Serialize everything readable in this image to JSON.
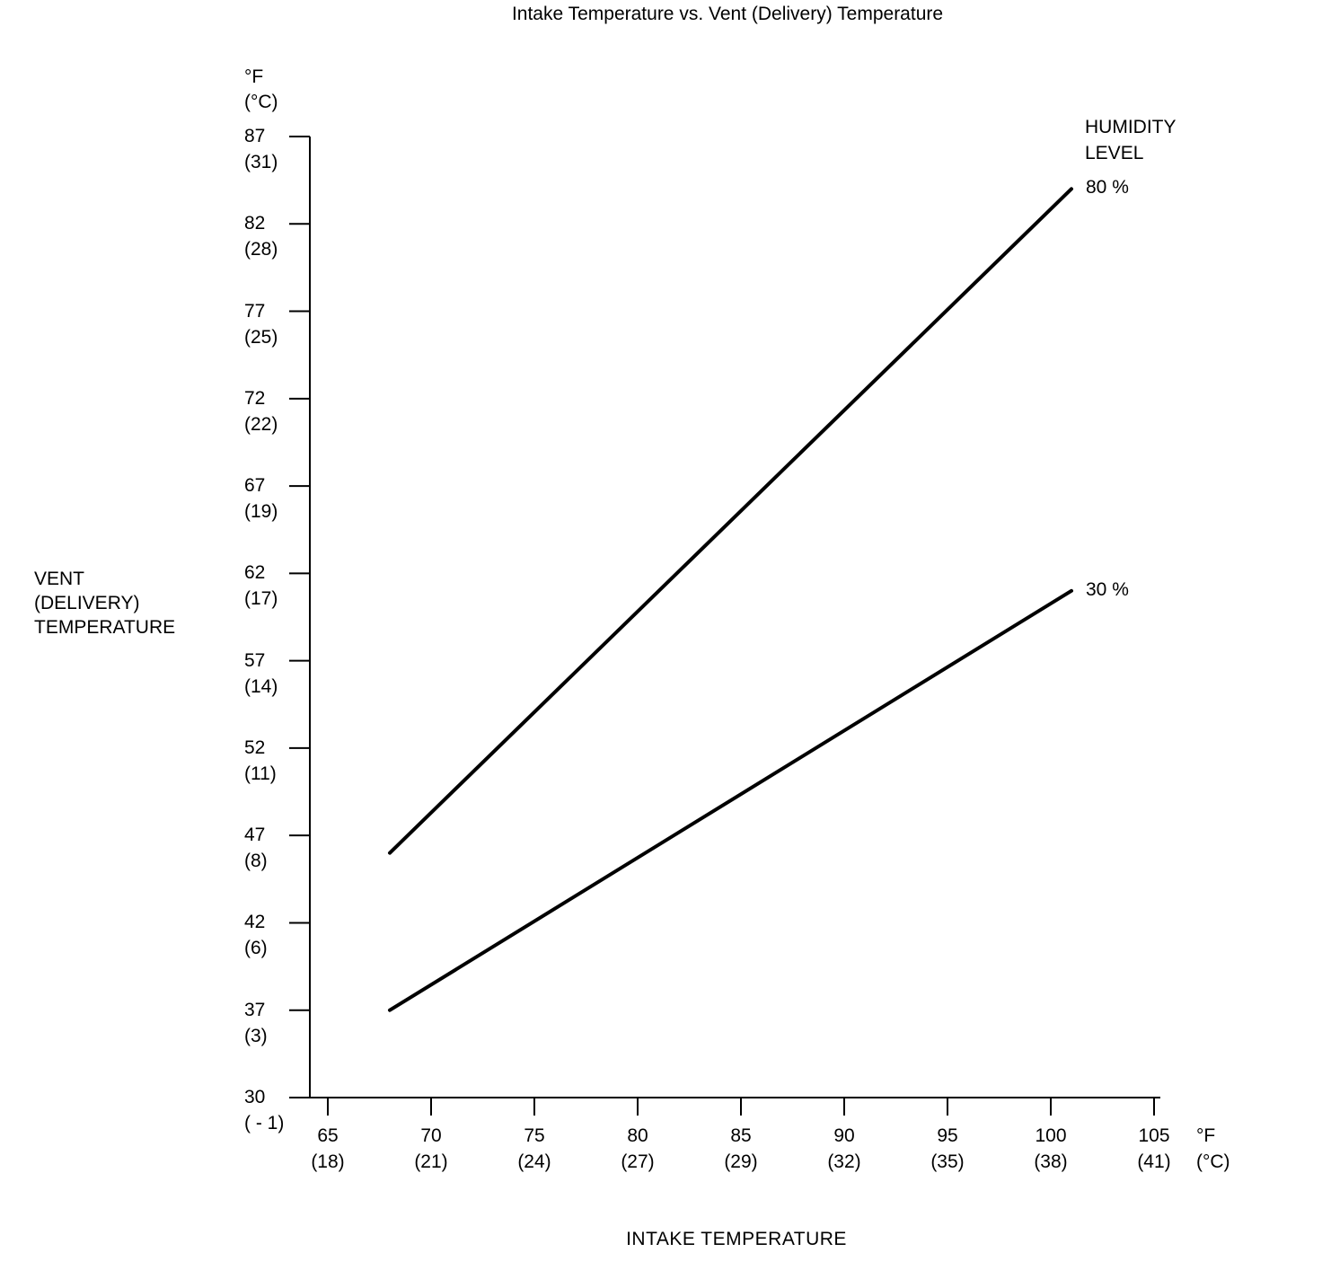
{
  "title": "Intake Temperature vs. Vent (Delivery) Temperature",
  "chart_data": {
    "type": "line",
    "title": "Intake Temperature vs. Vent (Delivery) Temperature",
    "xlabel": "INTAKE TEMPERATURE",
    "ylabel": "VENT (DELIVERY) TEMPERATURE",
    "ylabel_lines": [
      "VENT",
      "(DELIVERY)",
      "TEMPERATURE"
    ],
    "legend_title": "HUMIDITY LEVEL",
    "legend_lines": [
      "HUMIDITY",
      "LEVEL"
    ],
    "x_unit_f": "°F",
    "x_unit_c": "(°C)",
    "y_unit_f": "°F",
    "y_unit_c": "(°C)",
    "xlim": [
      65,
      105
    ],
    "ylim": [
      30,
      87
    ],
    "grid": false,
    "legend_position": "top-right",
    "x_ticks": [
      {
        "value": 65,
        "label_f": "65",
        "label_c": "(18)"
      },
      {
        "value": 70,
        "label_f": "70",
        "label_c": "(21)"
      },
      {
        "value": 75,
        "label_f": "75",
        "label_c": "(24)"
      },
      {
        "value": 80,
        "label_f": "80",
        "label_c": "(27)"
      },
      {
        "value": 85,
        "label_f": "85",
        "label_c": "(29)"
      },
      {
        "value": 90,
        "label_f": "90",
        "label_c": "(32)"
      },
      {
        "value": 95,
        "label_f": "95",
        "label_c": "(35)"
      },
      {
        "value": 100,
        "label_f": "100",
        "label_c": "(38)"
      },
      {
        "value": 105,
        "label_f": "105",
        "label_c": "(41)"
      }
    ],
    "y_ticks": [
      {
        "value": 87,
        "label_f": "87",
        "label_c": "(31)"
      },
      {
        "value": 82,
        "label_f": "82",
        "label_c": "(28)"
      },
      {
        "value": 77,
        "label_f": "77",
        "label_c": "(25)"
      },
      {
        "value": 72,
        "label_f": "72",
        "label_c": "(22)"
      },
      {
        "value": 67,
        "label_f": "67",
        "label_c": "(19)"
      },
      {
        "value": 62,
        "label_f": "62",
        "label_c": "(17)"
      },
      {
        "value": 57,
        "label_f": "57",
        "label_c": "(14)"
      },
      {
        "value": 52,
        "label_f": "52",
        "label_c": "(11)"
      },
      {
        "value": 47,
        "label_f": "47",
        "label_c": "(8)"
      },
      {
        "value": 42,
        "label_f": "42",
        "label_c": "(6)"
      },
      {
        "value": 37,
        "label_f": "37",
        "label_c": "(3)"
      },
      {
        "value": 30,
        "label_f": "30",
        "label_c": "( - 1)"
      }
    ],
    "series": [
      {
        "name": "80 %",
        "points": [
          [
            68,
            46
          ],
          [
            101,
            84
          ]
        ]
      },
      {
        "name": "30 %",
        "points": [
          [
            68,
            37
          ],
          [
            101,
            61
          ]
        ]
      }
    ],
    "line_color": "#000000"
  }
}
